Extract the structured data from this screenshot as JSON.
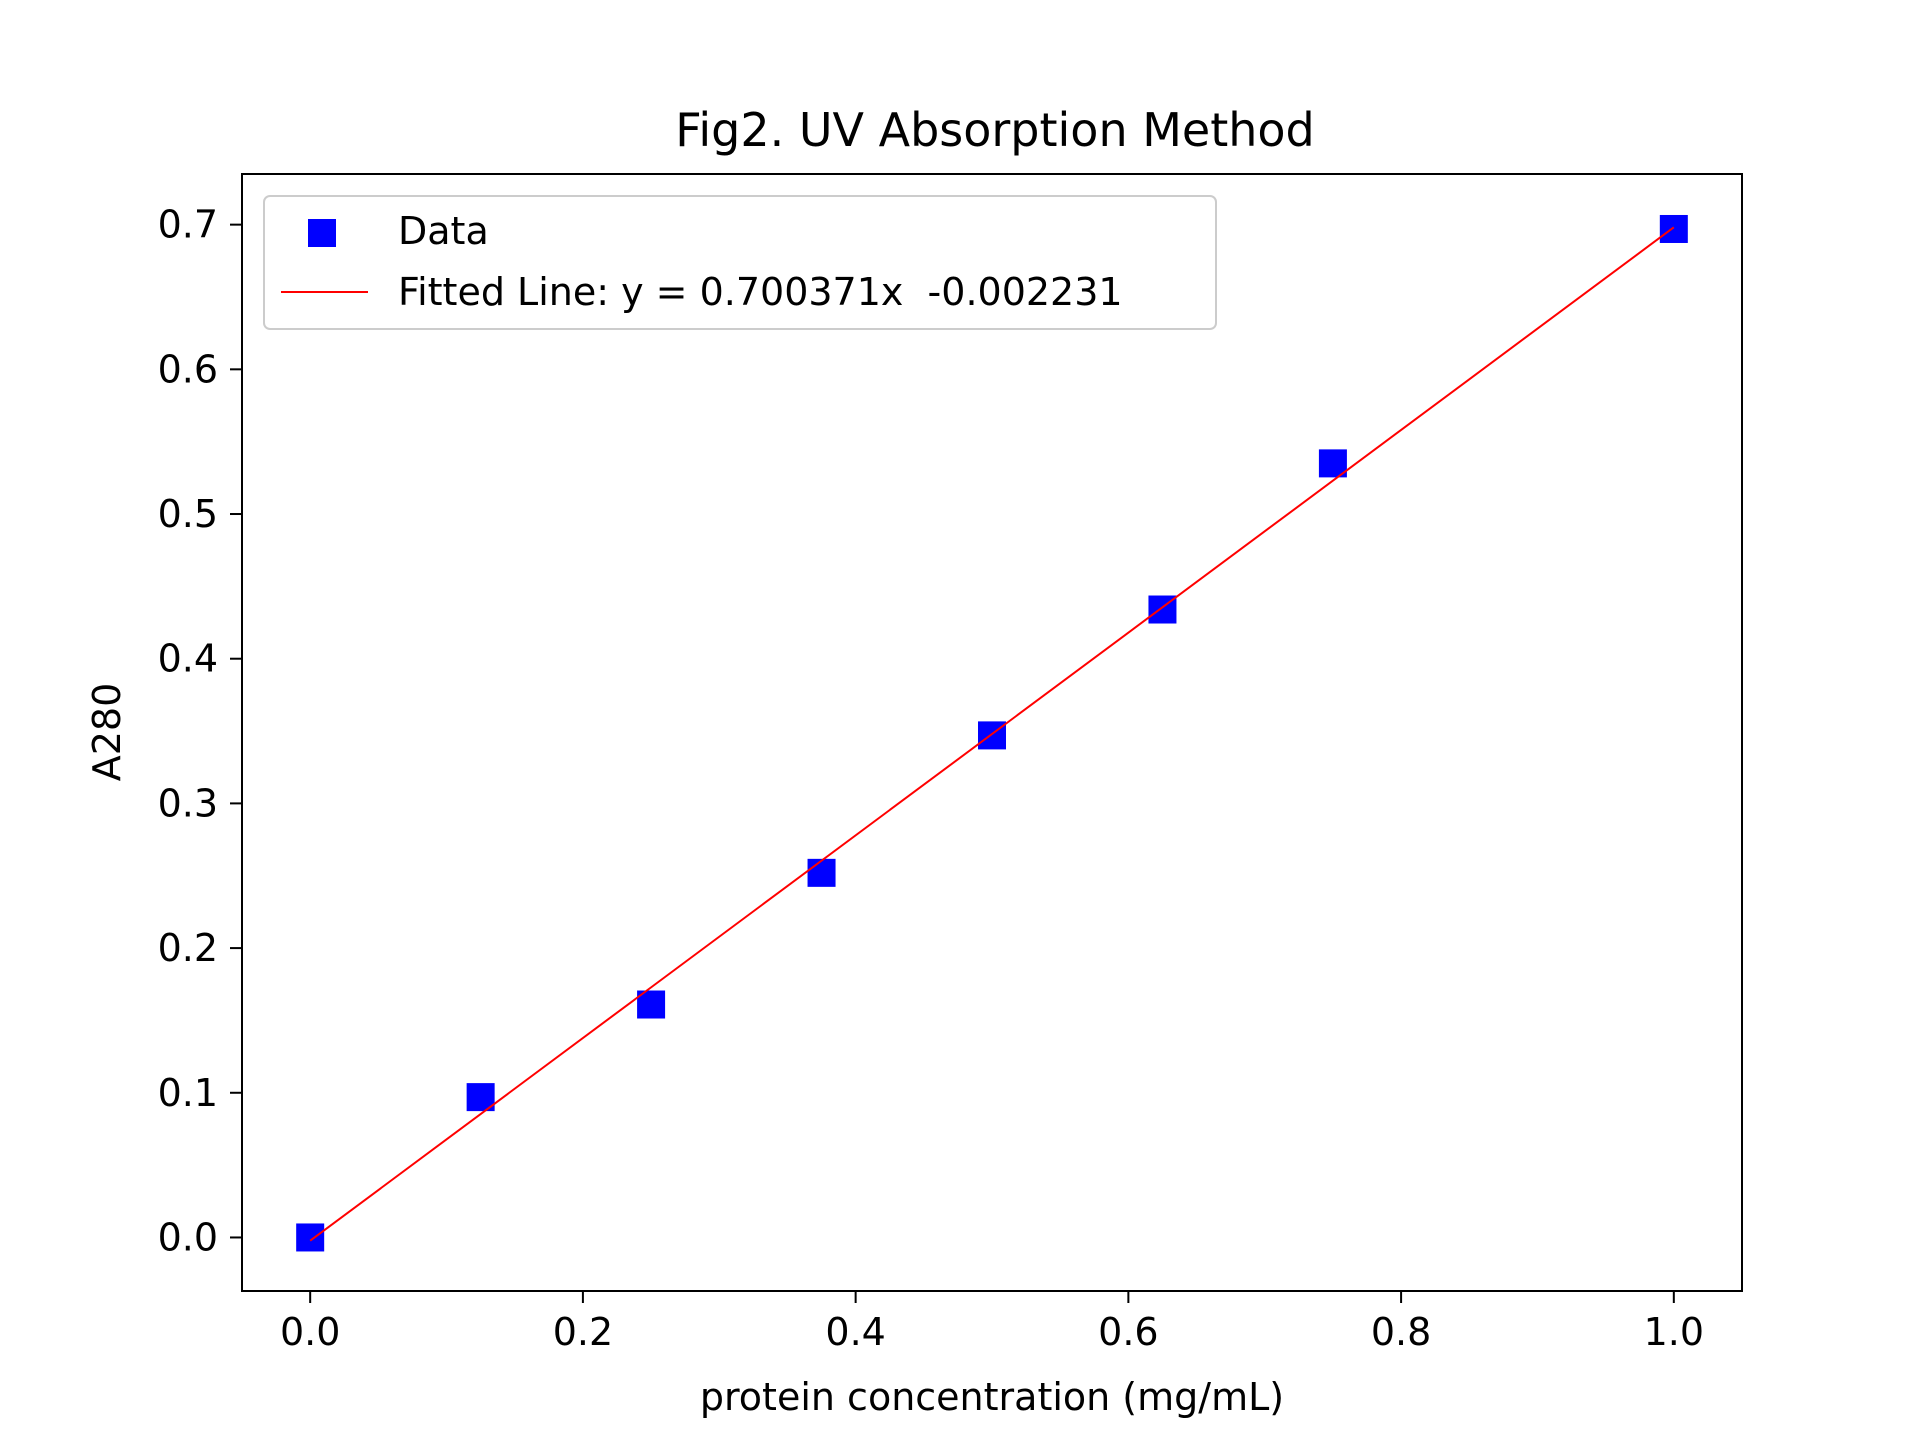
{
  "chart_data": {
    "type": "scatter",
    "title": "Fig2. UV Absorption Method",
    "xlabel": "protein concentration (mg/mL)",
    "ylabel": "A280",
    "xlim": [
      -0.05,
      1.05
    ],
    "ylim": [
      -0.037,
      0.735
    ],
    "x_ticks": [
      0.0,
      0.2,
      0.4,
      0.6,
      0.8,
      1.0
    ],
    "x_tick_labels": [
      "0.0",
      "0.2",
      "0.4",
      "0.6",
      "0.8",
      "1.0"
    ],
    "y_ticks": [
      0.0,
      0.1,
      0.2,
      0.3,
      0.4,
      0.5,
      0.6,
      0.7
    ],
    "y_tick_labels": [
      "0.0",
      "0.1",
      "0.2",
      "0.3",
      "0.4",
      "0.5",
      "0.6",
      "0.7"
    ],
    "grid": false,
    "legend_position": "top-left",
    "series": [
      {
        "name": "Data",
        "kind": "scatter",
        "marker": "square",
        "color": "#0000ff",
        "x": [
          0.0,
          0.125,
          0.25,
          0.375,
          0.5,
          0.625,
          0.75,
          1.0
        ],
        "y": [
          0.0,
          0.097,
          0.161,
          0.252,
          0.347,
          0.434,
          0.535,
          0.697
        ]
      },
      {
        "name": "Fitted Line: y = 0.700371x  -0.002231",
        "kind": "line",
        "color": "#ff0000",
        "slope": 0.700371,
        "intercept": -0.002231,
        "x_range": [
          0.0,
          1.0
        ]
      }
    ]
  }
}
